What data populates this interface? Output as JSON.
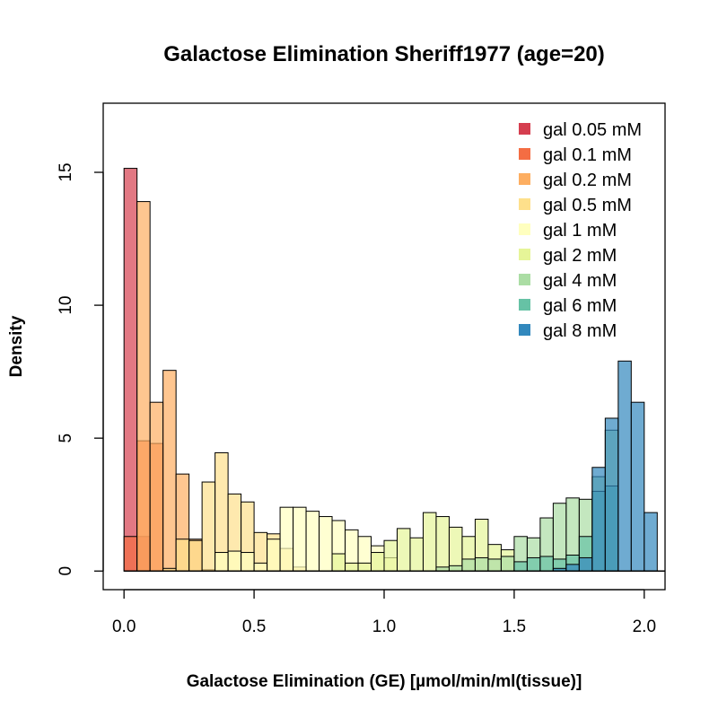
{
  "chart_data": {
    "type": "histogram",
    "title": "Galactose Elimination Sheriff1977 (age=20)",
    "xlabel": "Galactose Elimination (GE) [µmol/min/ml(tissue)]",
    "ylabel": "Density",
    "xlim": [
      -0.08,
      2.08
    ],
    "ylim": [
      -0.7,
      17.6
    ],
    "xticks": [
      {
        "value": 0.0,
        "label": "0.0"
      },
      {
        "value": 0.5,
        "label": "0.5"
      },
      {
        "value": 1.0,
        "label": "1.0"
      },
      {
        "value": 1.5,
        "label": "1.5"
      },
      {
        "value": 2.0,
        "label": "2.0"
      }
    ],
    "yticks": [
      {
        "value": 0,
        "label": "0"
      },
      {
        "value": 5,
        "label": "5"
      },
      {
        "value": 10,
        "label": "10"
      },
      {
        "value": 15,
        "label": "15"
      }
    ],
    "bin_width": 0.05,
    "series": [
      {
        "name": "gal 0.05 mM",
        "color": "#D53E4F",
        "bins": [
          [
            0.0,
            15.15
          ],
          [
            0.05,
            1.3
          ]
        ]
      },
      {
        "name": "gal 0.1 mM",
        "color": "#F46D43",
        "bins": [
          [
            0.0,
            1.3
          ],
          [
            0.05,
            4.9
          ],
          [
            0.1,
            4.8
          ]
        ]
      },
      {
        "name": "gal 0.2 mM",
        "color": "#FDAE61",
        "bins": [
          [
            0.05,
            13.9
          ],
          [
            0.1,
            6.35
          ],
          [
            0.15,
            7.55
          ],
          [
            0.2,
            3.65
          ],
          [
            0.25,
            1.2
          ],
          [
            0.3,
            0.05
          ]
        ]
      },
      {
        "name": "gal 0.5 mM",
        "color": "#FEE08B",
        "bins": [
          [
            0.15,
            0.1
          ],
          [
            0.2,
            1.2
          ],
          [
            0.25,
            1.15
          ],
          [
            0.3,
            3.35
          ],
          [
            0.35,
            4.45
          ],
          [
            0.4,
            2.9
          ],
          [
            0.45,
            2.6
          ],
          [
            0.5,
            1.45
          ],
          [
            0.55,
            1.4
          ],
          [
            0.6,
            0.85
          ],
          [
            0.65,
            0.15
          ]
        ]
      },
      {
        "name": "gal 1 mM",
        "color": "#FFFFBF",
        "bins": [
          [
            0.35,
            0.7
          ],
          [
            0.4,
            0.75
          ],
          [
            0.45,
            0.7
          ],
          [
            0.5,
            0.3
          ],
          [
            0.55,
            1.2
          ],
          [
            0.6,
            2.4
          ],
          [
            0.65,
            2.4
          ],
          [
            0.7,
            2.25
          ],
          [
            0.75,
            2.05
          ],
          [
            0.8,
            1.9
          ],
          [
            0.85,
            1.55
          ],
          [
            0.9,
            1.3
          ],
          [
            0.95,
            0.95
          ],
          [
            1.0,
            0.5
          ]
        ]
      },
      {
        "name": "gal 2 mM",
        "color": "#E6F598",
        "bins": [
          [
            0.8,
            0.65
          ],
          [
            0.85,
            0.3
          ],
          [
            0.9,
            0.3
          ],
          [
            0.95,
            0.7
          ],
          [
            1.0,
            1.15
          ],
          [
            1.05,
            1.6
          ],
          [
            1.1,
            1.25
          ],
          [
            1.15,
            2.2
          ],
          [
            1.2,
            2.05
          ],
          [
            1.25,
            1.65
          ],
          [
            1.3,
            1.3
          ],
          [
            1.35,
            1.95
          ],
          [
            1.4,
            1.0
          ],
          [
            1.45,
            0.8
          ]
        ]
      },
      {
        "name": "gal 4 mM",
        "color": "#ABDDA4",
        "bins": [
          [
            1.2,
            0.15
          ],
          [
            1.25,
            0.2
          ],
          [
            1.3,
            0.45
          ],
          [
            1.35,
            0.5
          ],
          [
            1.4,
            0.45
          ],
          [
            1.45,
            0.55
          ],
          [
            1.5,
            1.3
          ],
          [
            1.55,
            1.25
          ],
          [
            1.6,
            2.0
          ],
          [
            1.65,
            2.55
          ],
          [
            1.7,
            2.75
          ],
          [
            1.75,
            2.7
          ],
          [
            1.8,
            3.55
          ],
          [
            1.85,
            5.3
          ]
        ]
      },
      {
        "name": "gal 6 mM",
        "color": "#66C2A5",
        "bins": [
          [
            1.5,
            0.35
          ],
          [
            1.55,
            0.5
          ],
          [
            1.6,
            0.55
          ],
          [
            1.65,
            0.45
          ],
          [
            1.7,
            0.6
          ],
          [
            1.75,
            1.3
          ],
          [
            1.8,
            3.0
          ],
          [
            1.85,
            3.2
          ]
        ]
      },
      {
        "name": "gal 8 mM",
        "color": "#3288BD",
        "bins": [
          [
            1.65,
            0.1
          ],
          [
            1.7,
            0.25
          ],
          [
            1.75,
            0.5
          ],
          [
            1.8,
            3.9
          ],
          [
            1.85,
            5.75
          ],
          [
            1.9,
            7.9
          ],
          [
            1.95,
            6.35
          ],
          [
            2.0,
            2.2
          ]
        ]
      }
    ],
    "legend_position": "top-right",
    "bar_opacity": 0.7
  }
}
